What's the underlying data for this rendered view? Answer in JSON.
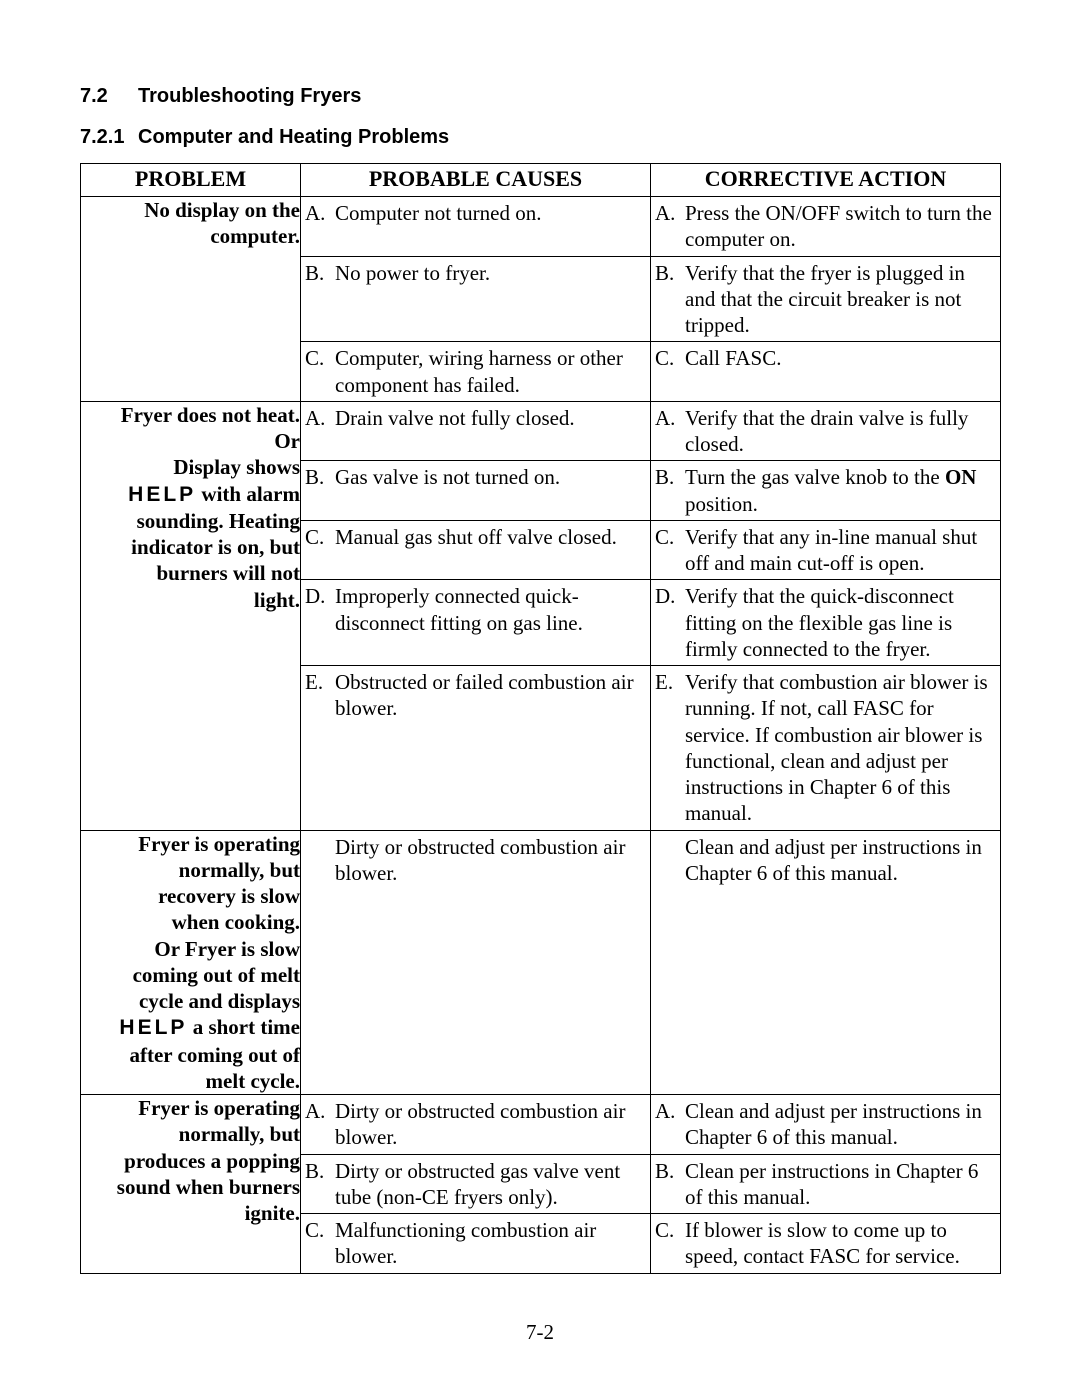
{
  "section": {
    "number": "7.2",
    "title": "Troubleshooting Fryers"
  },
  "subsection": {
    "number": "7.2.1",
    "title": "Computer and Heating Problems"
  },
  "headers": {
    "c1": "PROBLEM",
    "c2": "PROBABLE CAUSES",
    "c3": "CORRECTIVE ACTION"
  },
  "page_number": "7-2",
  "p1": {
    "problem_l1": "No display on the",
    "problem_l2": "computer.",
    "a_cause_lbl": "A.",
    "a_cause": "Computer not turned on.",
    "a_act_lbl": "A.",
    "a_act": "Press the ON/OFF switch to turn the computer on.",
    "b_cause_lbl": "B.",
    "b_cause": "No power to fryer.",
    "b_act_lbl": "B.",
    "b_act": "Verify that the fryer is plugged in and that the circuit breaker is not tripped.",
    "c_cause_lbl": "C.",
    "c_cause": "Computer, wiring harness or other component has failed.",
    "c_act_lbl": "C.",
    "c_act": "Call FASC."
  },
  "p2": {
    "problem_l1": "Fryer does not heat.",
    "problem_l2": "Or",
    "problem_l3": "Display shows",
    "problem_help": "HELP",
    "problem_l4_rest": " with alarm",
    "problem_l5": "sounding.  Heating",
    "problem_l6": "indicator is on, but",
    "problem_l7": "burners will not",
    "problem_l8": "light.",
    "a_cause_lbl": "A.",
    "a_cause": "Drain valve not fully closed.",
    "a_act_lbl": "A.",
    "a_act": "Verify that the drain valve is fully closed.",
    "b_cause_lbl": "B.",
    "b_cause": "Gas valve is not turned on.",
    "b_act_lbl": "B.",
    "b_act_pre": "Turn the gas valve knob to the ",
    "b_act_bold": "ON",
    "b_act_post": " position.",
    "c_cause_lbl": "C.",
    "c_cause": "Manual gas shut off valve closed.",
    "c_act_lbl": "C.",
    "c_act": "Verify that any in-line manual shut off  and main cut-off is open.",
    "d_cause_lbl": "D.",
    "d_cause": "Improperly connected quick-disconnect fitting on gas line.",
    "d_act_lbl": "D.",
    "d_act": "Verify that the quick-disconnect fitting on the flexible gas line is firmly connected to the fryer.",
    "e_cause_lbl": "E.",
    "e_cause": "Obstructed or failed combustion air blower.",
    "e_act_lbl": "E.",
    "e_act": "Verify that combustion air blower is running.  If not, call FASC for service.  If combustion air blower is functional, clean and adjust per instructions in Chapter 6 of this manual."
  },
  "p3": {
    "problem_l1": "Fryer is operating",
    "problem_l2": "normally, but",
    "problem_l3": "recovery is slow",
    "problem_l4": "when cooking.",
    "problem_l5": "Or Fryer is slow",
    "problem_l6": "coming out of melt",
    "problem_l7": "cycle and displays",
    "problem_help": "HELP",
    "problem_l8_rest": " a short time",
    "problem_l9": "after coming out of",
    "problem_l10": "melt cycle.",
    "cause": "Dirty or obstructed combustion air blower.",
    "action": "Clean and adjust per instructions in Chapter 6 of this manual."
  },
  "p4": {
    "problem_l1": "Fryer is operating",
    "problem_l2": "normally, but",
    "problem_l3": "produces a popping",
    "problem_l4": "sound when burners",
    "problem_l5": "ignite.",
    "a_cause_lbl": "A.",
    "a_cause": "Dirty or obstructed combustion air blower.",
    "a_act_lbl": "A.",
    "a_act": "Clean and adjust per instructions in Chapter 6 of this manual.",
    "b_cause_lbl": "B.",
    "b_cause": "Dirty or obstructed gas valve vent tube (non-CE fryers only).",
    "b_act_lbl": "B.",
    "b_act": "Clean per instructions in Chapter 6 of this manual.",
    "c_cause_lbl": "C.",
    "c_cause": "Malfunctioning combustion air blower.",
    "c_act_lbl": "C.",
    "c_act": "If blower is slow to come up to speed, contact FASC for service."
  }
}
